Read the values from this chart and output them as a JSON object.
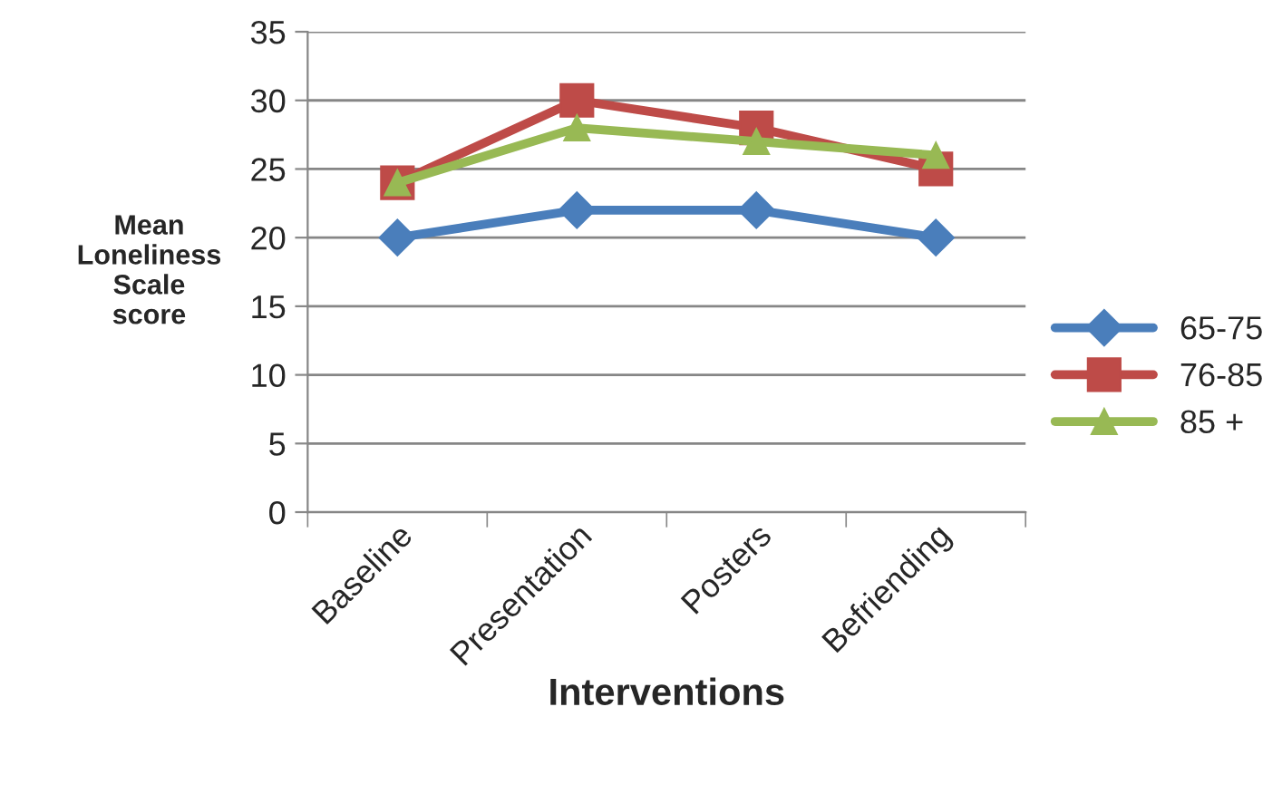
{
  "chart_data": {
    "type": "line",
    "xlabel": "Interventions",
    "ylabel": "Mean\nLoneliness\nScale\nscore",
    "categories": [
      "Baseline",
      "Presentation",
      "Posters",
      "Befriending"
    ],
    "series": [
      {
        "name": "65-75",
        "color": "#4a7ebb",
        "values": [
          20,
          22,
          22,
          20
        ],
        "marker": "diamond"
      },
      {
        "name": "76-85",
        "color": "#be4b48",
        "values": [
          24,
          30,
          28,
          25
        ],
        "marker": "square"
      },
      {
        "name": "85 +",
        "color": "#98b954",
        "values": [
          24,
          28,
          27,
          26
        ],
        "marker": "triangle"
      }
    ],
    "ylim": [
      0,
      35
    ],
    "yticks": [
      0,
      5,
      10,
      15,
      20,
      25,
      30,
      35
    ],
    "grid": "y",
    "legend": "right",
    "line_style": "solid"
  }
}
